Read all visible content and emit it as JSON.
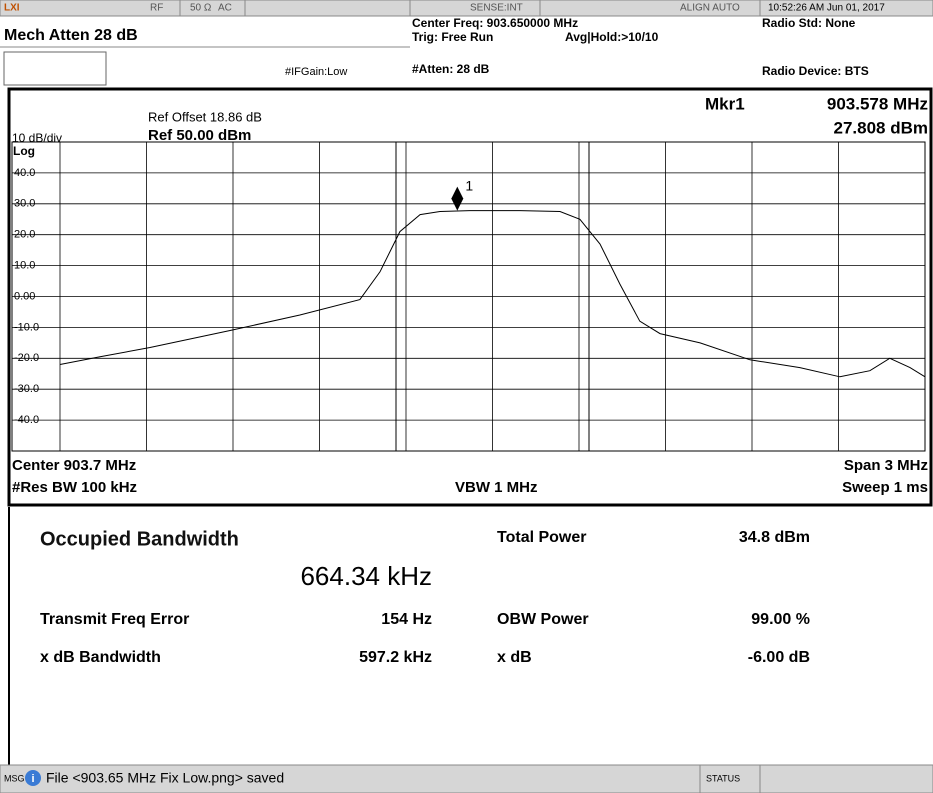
{
  "status_bar": {
    "logo": "LXI",
    "rf": "RF",
    "impedance": "50 Ω",
    "coupling": "AC",
    "sense": "SENSE:INT",
    "align": "ALIGN AUTO",
    "datetime": "10:52:26 AM Jun 01, 2017"
  },
  "settings": {
    "atten": "Mech Atten 28 dB",
    "ifgain": "#IFGain:Low",
    "center_freq": "Center Freq: 903.650000 MHz",
    "trig": "Trig: Free Run",
    "avg": "Avg|Hold:>10/10",
    "atten2": "#Atten: 28 dB",
    "radio_std": "Radio Std: None",
    "radio_device": "Radio Device: BTS"
  },
  "chart_data": {
    "type": "line",
    "ref_offset": "Ref Offset 18.86 dB",
    "scale": "10 dB/div",
    "ref": "Ref 50.00 dBm",
    "scale_type": "Log",
    "marker": {
      "label": "Mkr1",
      "number": "1",
      "x": 903.578,
      "x_label": "903.578 MHz",
      "y": 27.808,
      "y_label": "27.808 dBm"
    },
    "x": [
      902.2,
      902.339,
      902.512,
      902.79,
      903.032,
      903.24,
      903.31,
      903.379,
      903.449,
      903.518,
      903.622,
      903.795,
      903.934,
      904.003,
      904.073,
      904.142,
      904.211,
      904.281,
      904.42,
      904.593,
      904.766,
      904.905,
      905.009,
      905.078,
      905.148,
      905.2
    ],
    "values": [
      -22,
      -19.5,
      -16.5,
      -11,
      -6,
      -1,
      8,
      21,
      26.5,
      27.5,
      27.8,
      27.8,
      27.5,
      25,
      17,
      4,
      -8,
      -12,
      -15,
      -20.5,
      -23,
      -26,
      -24,
      -20,
      -23,
      -26
    ],
    "color": "#000000",
    "xlim": [
      902.2,
      905.2
    ],
    "ylim": [
      -50,
      50
    ],
    "yticks": [
      {
        "value": 40,
        "label": "40.0"
      },
      {
        "value": 30,
        "label": "30.0"
      },
      {
        "value": 20,
        "label": "20.0"
      },
      {
        "value": 10,
        "label": "10.0"
      },
      {
        "value": 0,
        "label": "0.00"
      },
      {
        "value": -10,
        "label": "-10.0"
      },
      {
        "value": -20,
        "label": "-20.0"
      },
      {
        "value": -30,
        "label": "-30.0"
      },
      {
        "value": -40,
        "label": "-40.0"
      }
    ],
    "grid": true,
    "center_label": "Center 903.7 MHz",
    "span_label": "Span 3 MHz",
    "rbw": "#Res BW 100 kHz",
    "vbw": "VBW 1 MHz",
    "sweep": "Sweep 1 ms"
  },
  "results": {
    "title": "Occupied Bandwidth",
    "value": "664.34 kHz",
    "total_power_label": "Total Power",
    "total_power": "34.8 dBm",
    "rows": [
      [
        "Transmit Freq Error",
        "154 Hz",
        "OBW Power",
        "99.00 %"
      ],
      [
        "x dB Bandwidth",
        "597.2 kHz",
        "x dB",
        "-6.00 dB"
      ]
    ]
  },
  "footer": {
    "msg": "MSG",
    "message": "File <903.65 MHz Fix Low.png> saved",
    "status": "STATUS"
  }
}
